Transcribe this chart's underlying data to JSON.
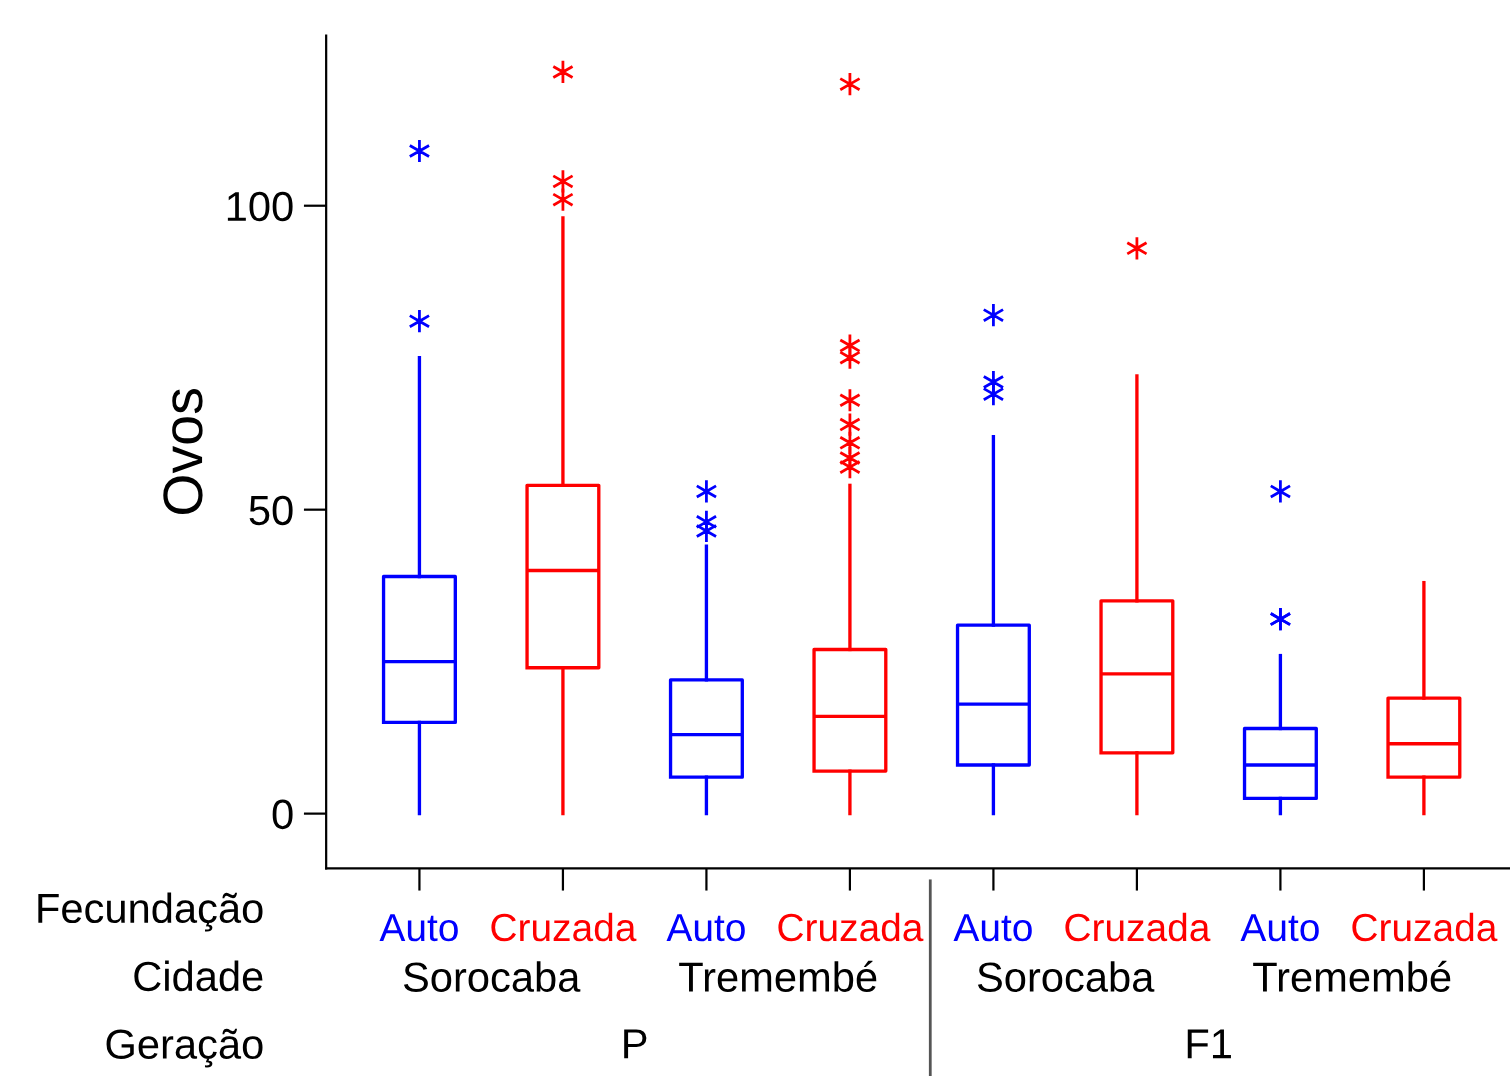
{
  "chart_data": {
    "type": "box",
    "ylabel": "Ovos",
    "categories": [
      "Auto",
      "Cruzada",
      "Auto",
      "Cruzada",
      "Auto",
      "Cruzada",
      "Auto",
      "Cruzada"
    ],
    "colors": [
      "#0000ff",
      "#ff0000",
      "#0000ff",
      "#ff0000",
      "#0000ff",
      "#ff0000",
      "#0000ff",
      "#ff0000"
    ],
    "boxes": [
      {
        "low": 0,
        "q1": 15,
        "median": 25,
        "q3": 39,
        "high": 75,
        "outliers": [
          81,
          109
        ]
      },
      {
        "low": 0,
        "q1": 24,
        "median": 40,
        "q3": 54,
        "high": 98,
        "outliers": [
          101,
          104,
          122
        ]
      },
      {
        "low": 0,
        "q1": 6,
        "median": 13,
        "q3": 22,
        "high": 44,
        "outliers": [
          46.5,
          48,
          53
        ]
      },
      {
        "low": 0,
        "q1": 7,
        "median": 16,
        "q3": 27,
        "high": 54,
        "outliers": [
          57,
          58.5,
          61,
          64,
          68,
          75,
          77,
          120
        ]
      },
      {
        "low": 0,
        "q1": 8,
        "median": 18,
        "q3": 31,
        "high": 62,
        "outliers": [
          69,
          71,
          82
        ]
      },
      {
        "low": 0,
        "q1": 10,
        "median": 23,
        "q3": 35,
        "high": 72,
        "outliers": [
          93
        ]
      },
      {
        "low": 0,
        "q1": 2.5,
        "median": 8,
        "q3": 14,
        "high": 26,
        "outliers": [
          32,
          32,
          53
        ]
      },
      {
        "low": 0,
        "q1": 6,
        "median": 11.5,
        "q3": 19,
        "high": 38
      }
    ],
    "ylim": [
      -9,
      128
    ],
    "yticks": [
      0,
      50,
      100
    ],
    "grid": false,
    "legend": false,
    "annotations": [
      "Fecundação",
      "Cidade",
      "Geração",
      "Sorocaba",
      "Tremembé",
      "Sorocaba",
      "Tremembé",
      "P",
      "F1"
    ]
  }
}
